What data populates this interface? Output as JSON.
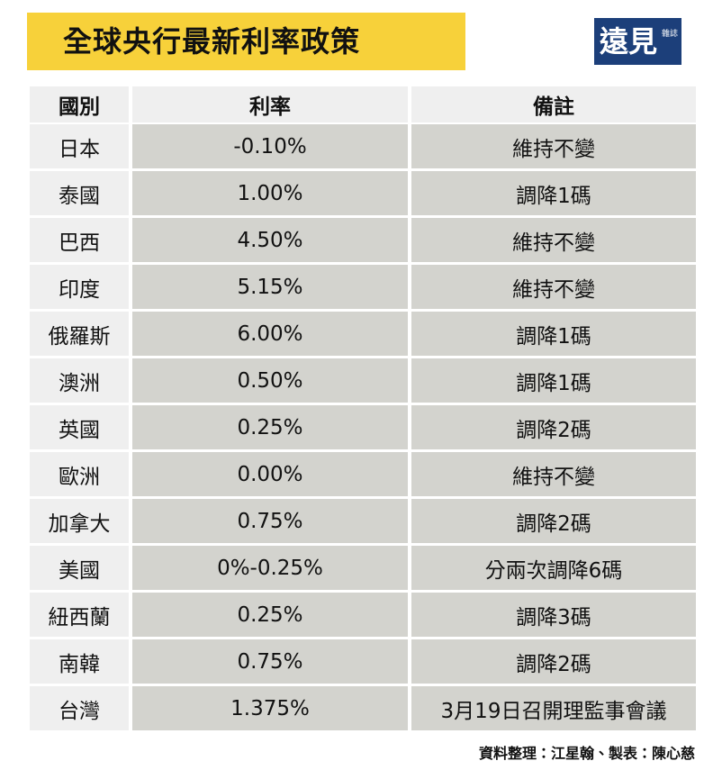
{
  "header": {
    "title": "全球央行最新利率政策",
    "logo": "遠見",
    "logo_sub": "雜誌"
  },
  "table": {
    "columns": [
      "國別",
      "利率",
      "備註"
    ],
    "rows": [
      [
        "日本",
        "-0.10%",
        "維持不變"
      ],
      [
        "泰國",
        "1.00%",
        "調降1碼"
      ],
      [
        "巴西",
        "4.50%",
        "維持不變"
      ],
      [
        "印度",
        "5.15%",
        "維持不變"
      ],
      [
        "俄羅斯",
        "6.00%",
        "調降1碼"
      ],
      [
        "澳洲",
        "0.50%",
        "調降1碼"
      ],
      [
        "英國",
        "0.25%",
        "調降2碼"
      ],
      [
        "歐洲",
        "0.00%",
        "維持不變"
      ],
      [
        "加拿大",
        "0.75%",
        "調降2碼"
      ],
      [
        "美國",
        "0%-0.25%",
        "分兩次調降6碼"
      ],
      [
        "紐西蘭",
        "0.25%",
        "調降3碼"
      ],
      [
        "南韓",
        "0.75%",
        "調降2碼"
      ],
      [
        "台灣",
        "1.375%",
        "3月19日召開理監事會議"
      ]
    ]
  },
  "footer": {
    "credit": "資料整理：江星翰、製表：陳心慈"
  }
}
